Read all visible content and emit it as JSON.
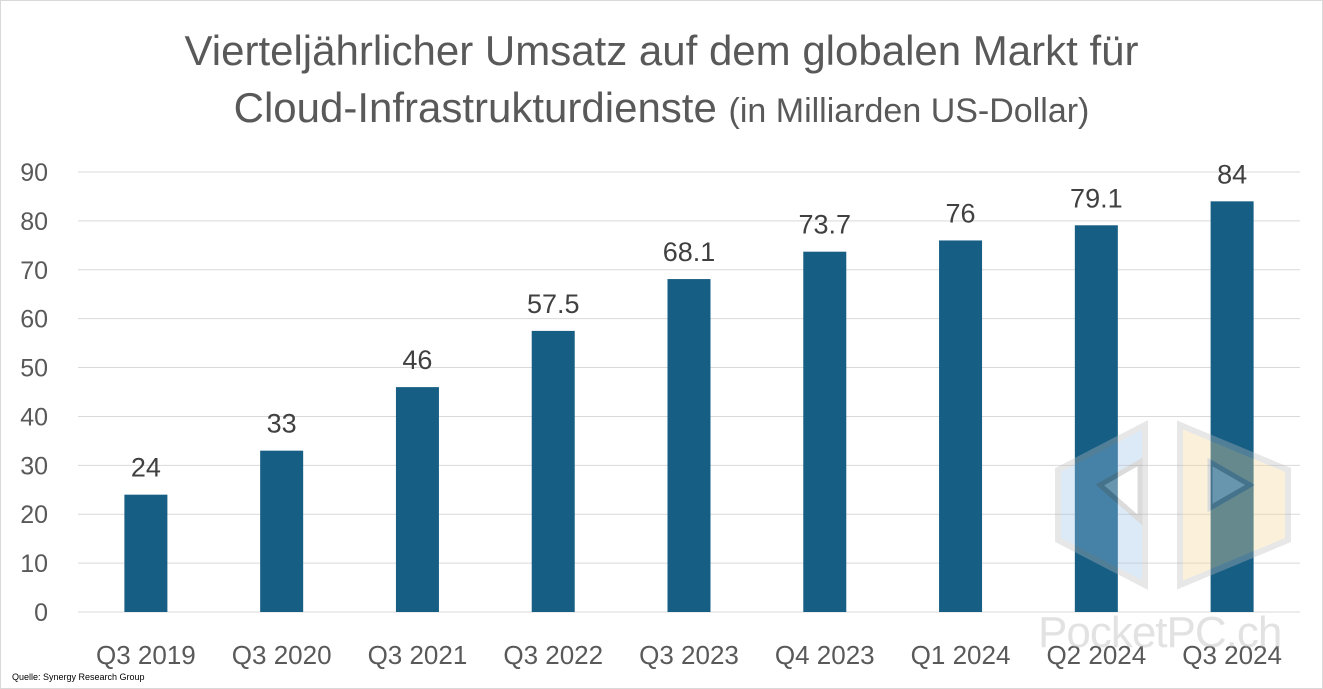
{
  "chart_data": {
    "type": "bar",
    "title_main": "Vierteljährlicher Umsatz auf dem globalen Markt für",
    "title_line2": "Cloud-Infrastrukturdienste",
    "title_unit": "(in Milliarden US-Dollar)",
    "categories": [
      "Q3 2019",
      "Q3 2020",
      "Q3 2021",
      "Q3 2022",
      "Q3 2023",
      "Q4 2023",
      "Q1 2024",
      "Q2 2024",
      "Q3 2024"
    ],
    "values": [
      24,
      33,
      46,
      57.5,
      68.1,
      73.7,
      76,
      79.1,
      84
    ],
    "value_labels": [
      "24",
      "33",
      "46",
      "57.5",
      "68.1",
      "73.7",
      "76",
      "79.1",
      "84"
    ],
    "y_ticks": [
      0,
      10,
      20,
      30,
      40,
      50,
      60,
      70,
      80,
      90
    ],
    "ylim": [
      0,
      90
    ],
    "xlabel": "",
    "ylabel": "",
    "grid": true,
    "legend": "none",
    "bar_color": "#175e85",
    "grid_color": "#d9d9d9",
    "text_color": "#595959"
  },
  "source": "Quelle: Synergy Research Group",
  "watermark": "PocketPC.ch"
}
